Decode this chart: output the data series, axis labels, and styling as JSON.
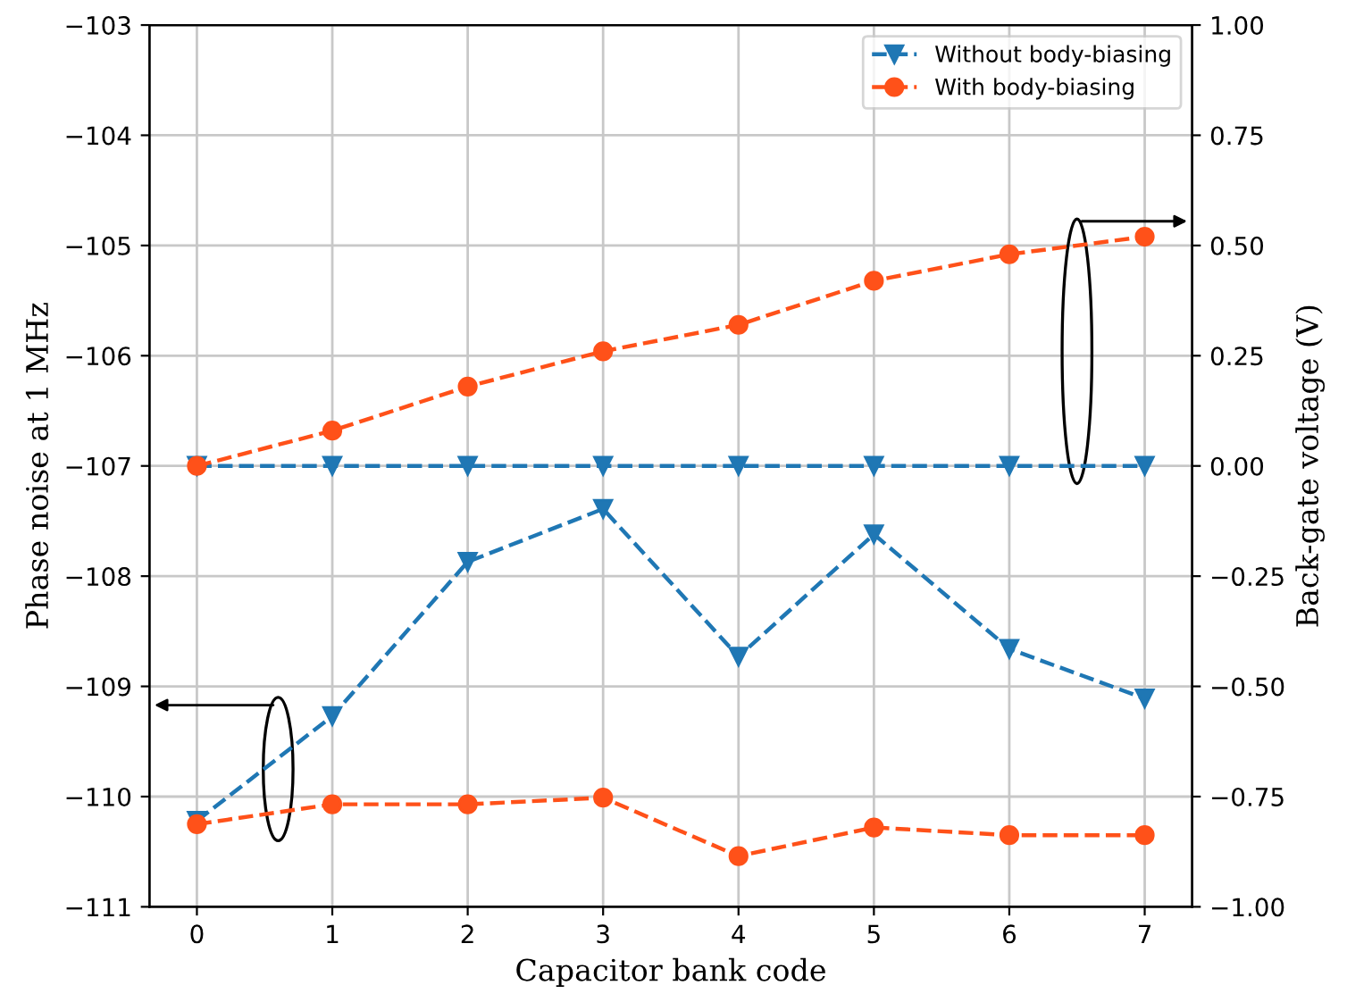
{
  "chart_data": {
    "type": "line",
    "xlabel": "Capacitor bank code",
    "ylabel": "Phase noise at 1 MHz",
    "y2label": "Back-gate voltage (V)",
    "x": [
      0,
      1,
      2,
      3,
      4,
      5,
      6,
      7
    ],
    "series": [
      {
        "name": "Without body-biasing",
        "color": "#1f77b4",
        "marker": "triangle",
        "values": [
          -110.22,
          -109.27,
          -107.87,
          -107.39,
          -108.73,
          -107.62,
          -108.66,
          -109.11
        ]
      },
      {
        "name": "With body-biasing",
        "color": "#ff5119",
        "marker": "circle",
        "values": [
          -110.25,
          -110.07,
          -110.07,
          -110.01,
          -110.54,
          -110.28,
          -110.35,
          -110.35
        ]
      },
      {
        "color": "#1f77b4",
        "marker": "triangle",
        "axis": "y2",
        "values": [
          0,
          0,
          0,
          0,
          0,
          0,
          0,
          0
        ]
      },
      {
        "color": "#ff5119",
        "marker": "circle",
        "axis": "y2",
        "values": [
          0,
          0.08,
          0.18,
          0.26,
          0.32,
          0.42,
          0.48,
          0.52
        ]
      }
    ],
    "line_style": "dashed",
    "grid": true,
    "legend": "top right",
    "xlim": [
      -0.35,
      7.35
    ],
    "xticks": [
      0,
      1,
      2,
      3,
      4,
      5,
      6,
      7
    ],
    "ylim": [
      -111,
      -103
    ],
    "yticks": [
      -111,
      -110,
      -109,
      -108,
      -107,
      -106,
      -105,
      -104,
      -103
    ],
    "y2lim": [
      -1,
      1
    ],
    "y2ticks": [
      {
        "value": -1,
        "label": "−1.00"
      },
      {
        "value": -0.75,
        "label": "−0.75"
      },
      {
        "value": -0.5,
        "label": "−0.50"
      },
      {
        "value": -0.25,
        "label": "−0.25"
      },
      {
        "value": 0,
        "label": "0.00"
      },
      {
        "value": 0.25,
        "label": "0.25"
      },
      {
        "value": 0.5,
        "label": "0.50"
      },
      {
        "value": 0.75,
        "label": "0.75"
      },
      {
        "value": 1,
        "label": "1.00"
      }
    ]
  }
}
